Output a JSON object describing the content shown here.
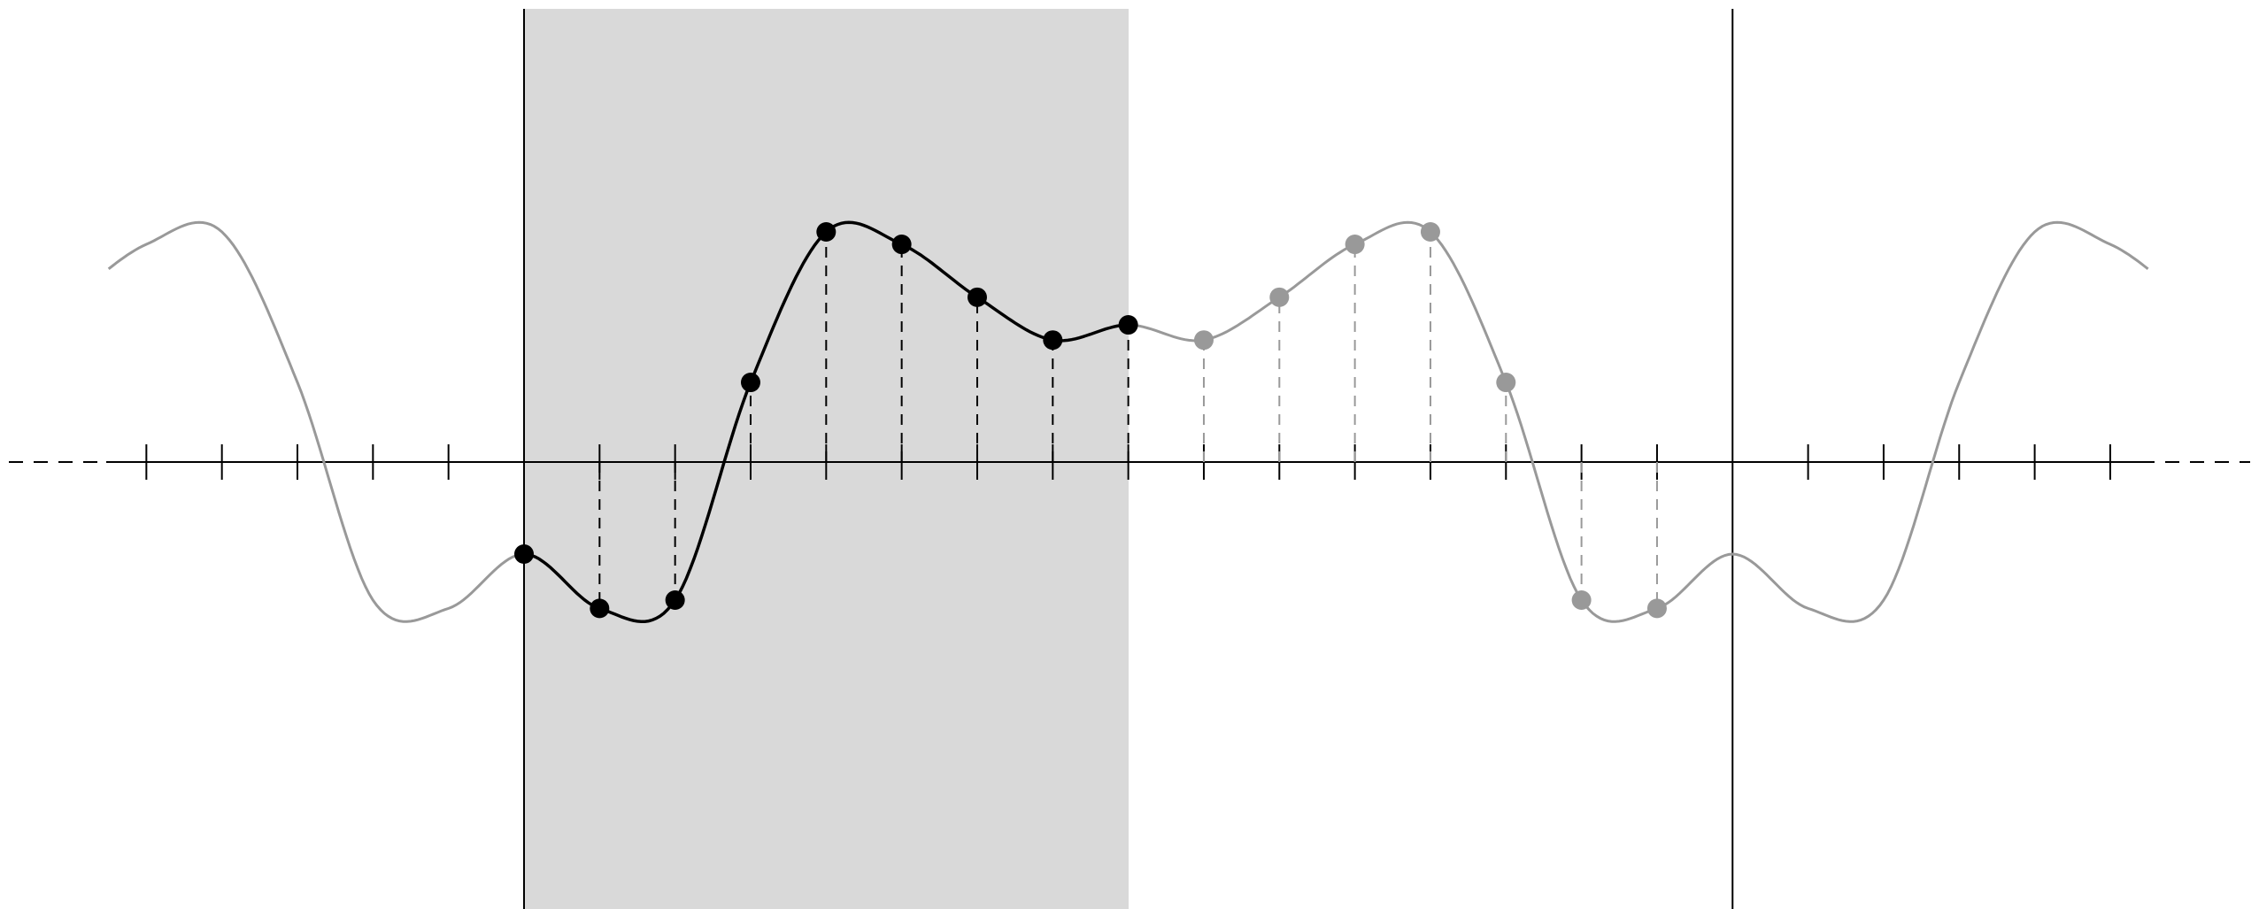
{
  "colors": {
    "background": "#ffffff",
    "shaded_region": "#d9d9d9",
    "primary": "#000000",
    "secondary": "#999999"
  },
  "diagram": {
    "kind": "symmetric periodic extension of a sampled signal",
    "primary_samples": [
      -2,
      -3.18,
      -3,
      1.73,
      5,
      4.73,
      3.58,
      2.65,
      2.98
    ],
    "extension_samples": [
      2.65,
      3.58,
      4.73,
      5,
      1.73,
      -3,
      -3.18
    ],
    "tick_count_each_side": 5,
    "grid": false,
    "labels": []
  }
}
